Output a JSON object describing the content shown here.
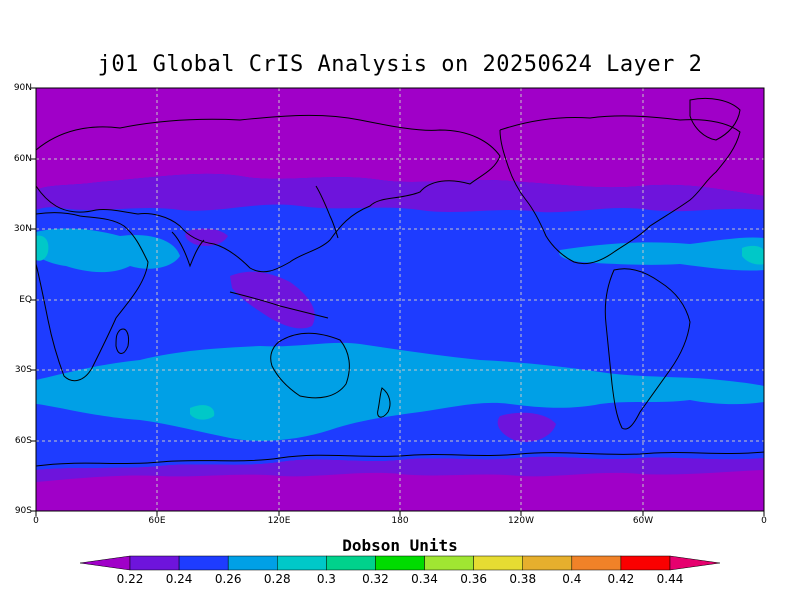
{
  "title": "j01 Global CrIS Analysis on 20250624 Layer 2",
  "lat_labels": [
    "90N",
    "60N",
    "30N",
    "EQ",
    "30S",
    "60S",
    "90S"
  ],
  "lon_labels": [
    "0",
    "60E",
    "120E",
    "180",
    "120W",
    "60W",
    "0"
  ],
  "colorbar": {
    "title": "Dobson Units",
    "labels": [
      "0.22",
      "0.24",
      "0.26",
      "0.28",
      "0.3",
      "0.32",
      "0.34",
      "0.36",
      "0.38",
      "0.4",
      "0.42",
      "0.44"
    ],
    "colors": [
      "#a000c8",
      "#6e14dc",
      "#1e3cff",
      "#00a0e6",
      "#00c8c8",
      "#00d28c",
      "#00dc00",
      "#a0e632",
      "#e6dc32",
      "#e6af2d",
      "#f08228",
      "#fa0000",
      "#e6006e"
    ]
  },
  "colors": {
    "band_polar": "#a000c8",
    "band_mid": "#6e14dc",
    "band_main": "#1e3cff",
    "band_high": "#00a0e6",
    "band_peak": "#00c8c8",
    "coastline": "#000000",
    "grid": "#c8c8c8"
  }
}
